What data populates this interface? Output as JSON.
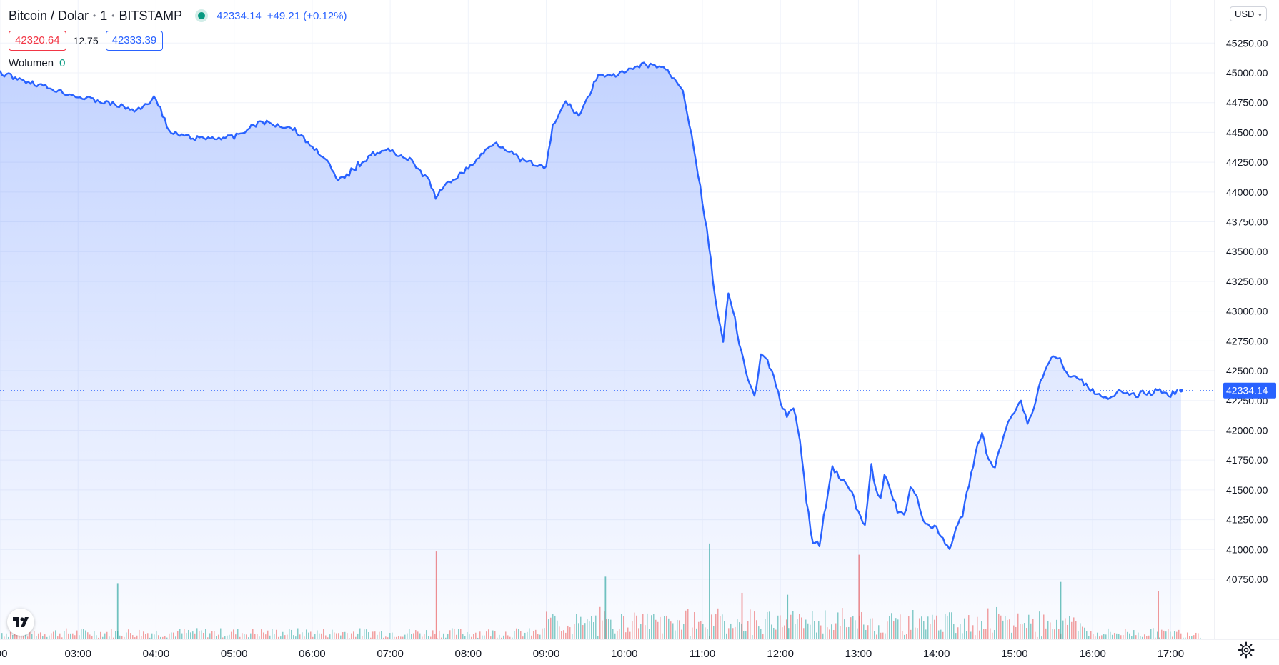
{
  "header": {
    "symbol": "Bitcoin / Dolar",
    "interval": "1",
    "exchange": "BITSTAMP",
    "last_price": "42334.14",
    "change": "+49.21 (+0.12%)"
  },
  "quote": {
    "bid": "42320.64",
    "spread": "12.75",
    "ask": "42333.39"
  },
  "volume": {
    "label": "Wolumen",
    "value": "0"
  },
  "currency": "USD",
  "colors": {
    "line": "#2962ff",
    "up": "#26a69a",
    "down": "#ef5350",
    "grid": "#f0f3fa"
  },
  "icons": {
    "logo": "tradingview-logo-icon",
    "settings": "gear-icon",
    "status": "live-dot-icon"
  },
  "chart_data": {
    "type": "area",
    "series_name": "Bitcoin / Dolar",
    "x": [
      "02:00",
      "02:30",
      "03:00",
      "03:30",
      "03:45",
      "04:00",
      "04:10",
      "04:30",
      "05:00",
      "05:20",
      "05:45",
      "06:00",
      "06:10",
      "06:20",
      "06:45",
      "07:00",
      "07:15",
      "07:30",
      "07:35",
      "07:45",
      "08:00",
      "08:10",
      "08:20",
      "08:30",
      "08:40",
      "09:00",
      "09:05",
      "09:15",
      "09:25",
      "09:35",
      "09:40",
      "09:45",
      "10:00",
      "10:15",
      "10:30",
      "10:45",
      "10:55",
      "11:00",
      "11:05",
      "11:08",
      "11:12",
      "11:16",
      "11:20",
      "11:25",
      "11:30",
      "11:35",
      "11:40",
      "11:45",
      "11:50",
      "11:55",
      "12:00",
      "12:05",
      "12:10",
      "12:15",
      "12:20",
      "12:25",
      "12:30",
      "12:40",
      "12:55",
      "13:00",
      "13:05",
      "13:10",
      "13:15",
      "13:17",
      "13:20",
      "13:25",
      "13:30",
      "13:35",
      "13:40",
      "13:45",
      "13:50",
      "13:55",
      "14:00",
      "14:05",
      "14:10",
      "14:15",
      "14:20",
      "14:25",
      "14:30",
      "14:35",
      "14:40",
      "14:45",
      "14:55",
      "15:00",
      "15:05",
      "15:10",
      "15:15",
      "15:20",
      "15:25",
      "15:30",
      "15:35",
      "15:40",
      "15:45",
      "15:50",
      "15:55",
      "16:00",
      "16:05",
      "16:10",
      "16:15",
      "16:20",
      "16:25",
      "16:30",
      "16:35",
      "16:40",
      "16:45",
      "16:50",
      "16:55",
      "17:00",
      "17:05",
      "17:08"
    ],
    "y": [
      45000,
      44900,
      44800,
      44730,
      44680,
      44800,
      44500,
      44450,
      44460,
      44590,
      44540,
      44380,
      44290,
      44080,
      44320,
      44350,
      44270,
      44090,
      43960,
      44080,
      44200,
      44310,
      44420,
      44360,
      44270,
      44200,
      44550,
      44760,
      44640,
      44860,
      45000,
      44960,
      45000,
      45070,
      45050,
      44870,
      44280,
      43900,
      43570,
      43260,
      42980,
      42740,
      43150,
      42920,
      42660,
      42410,
      42290,
      42620,
      42580,
      42440,
      42240,
      42130,
      42180,
      41920,
      41410,
      41050,
      41050,
      41690,
      41480,
      41300,
      41200,
      41690,
      41450,
      41410,
      41630,
      41490,
      41320,
      41280,
      41530,
      41440,
      41250,
      41180,
      41180,
      41080,
      41000,
      41180,
      41290,
      41540,
      41810,
      42000,
      41740,
      41690,
      42090,
      42160,
      42250,
      42060,
      42190,
      42420,
      42530,
      42640,
      42590,
      42470,
      42450,
      42420,
      42390,
      42330,
      42310,
      42280,
      42270,
      42320,
      42310,
      42290,
      42300,
      42320,
      42310,
      42340,
      42320,
      42300,
      42330,
      42334.14
    ],
    "volume_spikes": [
      {
        "x": "03:30",
        "v": "high",
        "color": "up"
      },
      {
        "x": "07:35",
        "v": "high",
        "color": "down"
      },
      {
        "x": "09:45",
        "v": "high",
        "color": "up"
      },
      {
        "x": "11:05",
        "v": "high",
        "color": "up"
      },
      {
        "x": "11:30",
        "v": "high",
        "color": "down"
      },
      {
        "x": "12:05",
        "v": "high",
        "color": "up"
      },
      {
        "x": "13:00",
        "v": "high",
        "color": "down"
      },
      {
        "x": "15:35",
        "v": "high",
        "color": "up"
      },
      {
        "x": "16:50",
        "v": "high",
        "color": "down"
      }
    ],
    "x_ticks": [
      ":00",
      "03:00",
      "04:00",
      "05:00",
      "06:00",
      "07:00",
      "08:00",
      "09:00",
      "10:00",
      "11:00",
      "12:00",
      "13:00",
      "14:00",
      "15:00",
      "16:00",
      "17:00"
    ],
    "x_tick_hours": [
      2,
      3,
      4,
      5,
      6,
      7,
      8,
      9,
      10,
      11,
      12,
      13,
      14,
      15,
      16,
      17
    ],
    "y_ticks": [
      "45250.00",
      "45000.00",
      "44750.00",
      "44500.00",
      "44250.00",
      "44000.00",
      "43750.00",
      "43500.00",
      "43250.00",
      "43000.00",
      "42750.00",
      "42500.00",
      "42250.00",
      "42000.00",
      "41750.00",
      "41500.00",
      "41250.00",
      "41000.00",
      "40750.00"
    ],
    "y_tick_values": [
      45250,
      45000,
      44750,
      44500,
      44250,
      44000,
      43750,
      43500,
      43250,
      43000,
      42750,
      42500,
      42250,
      42000,
      41750,
      41500,
      41250,
      41000,
      40750
    ],
    "ylim": [
      40600,
      45500
    ],
    "xlim_hours": [
      2.0,
      17.4
    ],
    "last_price_label": "42334.14",
    "grid": true
  }
}
